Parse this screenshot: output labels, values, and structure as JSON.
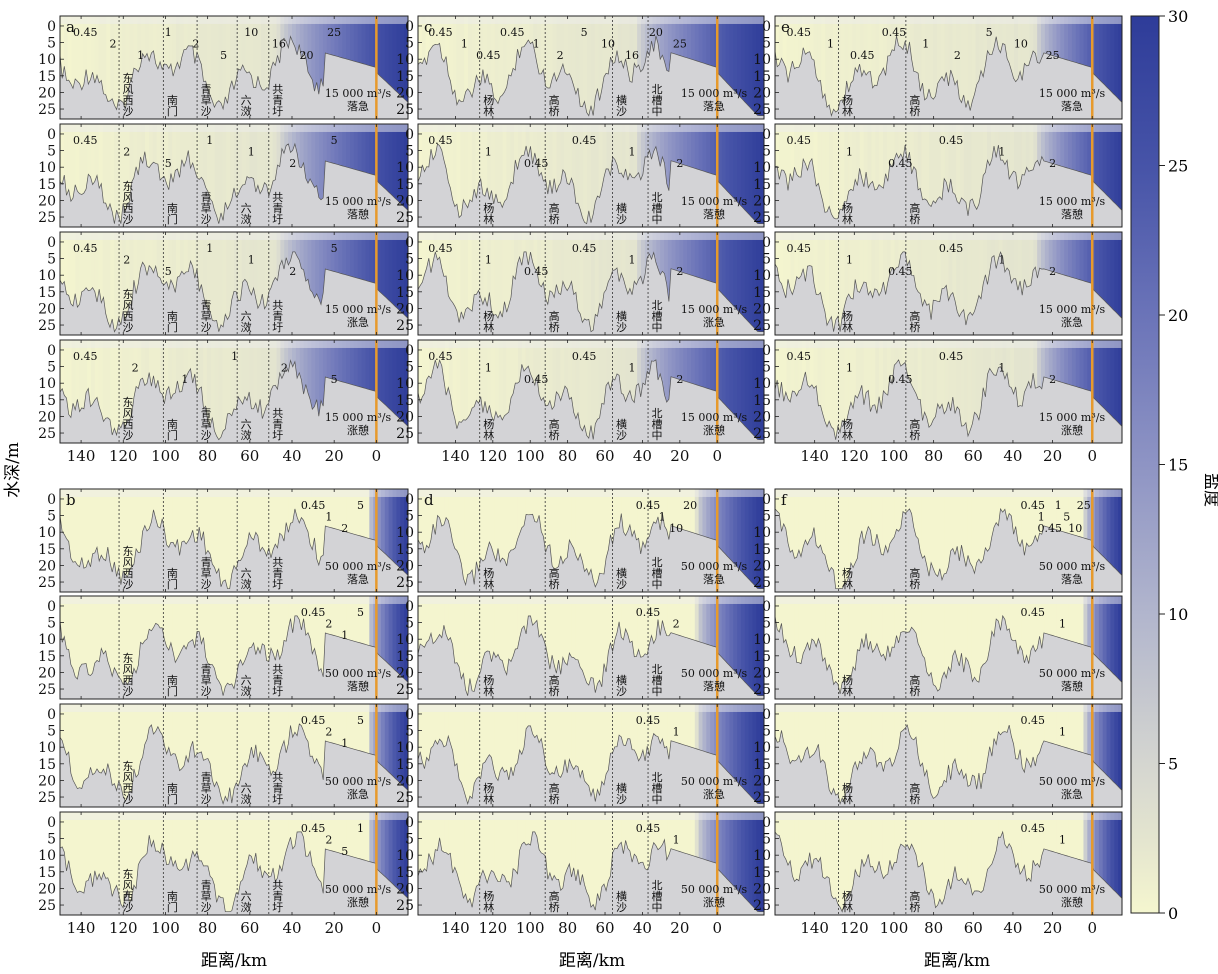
{
  "figure": {
    "ylabel": "水深/m",
    "xlabel": "距离/km",
    "colorbar": {
      "label": "盐度",
      "ticks": [
        0,
        5,
        10,
        15,
        20,
        25,
        30
      ],
      "colors": [
        "#f5f6cf",
        "#d6d6cf",
        "#c4c6d2",
        "#9ea3c8",
        "#7880bd",
        "#4f5aae",
        "#2e3c99"
      ]
    },
    "land_color": "#d3d3d6",
    "river_mouth_color": "#e79a2c"
  },
  "chart_data": [
    {
      "type": "heatmap",
      "panel": "a",
      "x_ticks": [
        140,
        120,
        100,
        80,
        60,
        40,
        20,
        0
      ],
      "xlim": [
        150,
        -15
      ],
      "y_ticks": [
        0,
        5,
        10,
        15,
        20,
        25
      ],
      "ylim": [
        28,
        -3
      ],
      "sections": [
        "东风西沙",
        "南门",
        "青草沙",
        "六滧",
        "共青圩"
      ],
      "section_km": [
        122,
        101,
        85,
        66,
        51
      ],
      "rows": [
        {
          "discharge": "15 000 m³/s",
          "tide": "落急",
          "contours": [
            "0.45",
            "2",
            "1",
            "1",
            "2",
            "5",
            "10",
            "16",
            "20",
            "25"
          ]
        },
        {
          "discharge": "15 000 m³/s",
          "tide": "落憩",
          "contours": [
            "0.45",
            "2",
            "5",
            "1",
            "1",
            "2",
            "5"
          ]
        },
        {
          "discharge": "15 000 m³/s",
          "tide": "涨急",
          "contours": [
            "0.45",
            "2",
            "5",
            "1",
            "1",
            "2",
            "5"
          ]
        },
        {
          "discharge": "15 000 m³/s",
          "tide": "涨憩",
          "contours": [
            "0.45",
            "2",
            "1",
            "1",
            "2",
            "5"
          ]
        }
      ]
    },
    {
      "type": "heatmap",
      "panel": "b",
      "x_ticks": [
        140,
        120,
        100,
        80,
        60,
        40,
        20,
        0
      ],
      "xlim": [
        150,
        -15
      ],
      "y_ticks": [
        0,
        5,
        10,
        15,
        20,
        25
      ],
      "ylim": [
        28,
        -3
      ],
      "sections": [
        "东风西沙",
        "南门",
        "青草沙",
        "六滧",
        "共青圩"
      ],
      "section_km": [
        122,
        101,
        85,
        66,
        51
      ],
      "rows": [
        {
          "discharge": "50 000 m³/s",
          "tide": "落急",
          "contours": [
            "0.45",
            "1",
            "2",
            "5"
          ]
        },
        {
          "discharge": "50 000 m³/s",
          "tide": "落憩",
          "contours": [
            "0.45",
            "2",
            "1",
            "5"
          ]
        },
        {
          "discharge": "50 000 m³/s",
          "tide": "涨急",
          "contours": [
            "0.45",
            "2",
            "1",
            "5"
          ]
        },
        {
          "discharge": "50 000 m³/s",
          "tide": "涨憩",
          "contours": [
            "0.45",
            "2",
            "5",
            "1"
          ]
        }
      ]
    },
    {
      "type": "heatmap",
      "panel": "c",
      "x_ticks": [
        140,
        120,
        100,
        80,
        60,
        40,
        20,
        0
      ],
      "xlim": [
        160,
        -25
      ],
      "y_ticks": [
        0,
        5,
        10,
        15,
        20,
        25
      ],
      "ylim": [
        28,
        -3
      ],
      "sections": [
        "杨林",
        "高桥",
        "横沙",
        "北槽中"
      ],
      "section_km": [
        127,
        92,
        56,
        37
      ],
      "rows": [
        {
          "discharge": "15 000 m³/s",
          "tide": "落急",
          "contours": [
            "0.45",
            "1",
            "0.45",
            "0.45",
            "1",
            "2",
            "5",
            "10",
            "16",
            "20",
            "25"
          ]
        },
        {
          "discharge": "15 000 m³/s",
          "tide": "落憩",
          "contours": [
            "0.45",
            "1",
            "0.45",
            "0.45",
            "1",
            "2"
          ]
        },
        {
          "discharge": "15 000 m³/s",
          "tide": "涨急",
          "contours": [
            "0.45",
            "1",
            "0.45",
            "0.45",
            "1",
            "2"
          ]
        },
        {
          "discharge": "15 000 m³/s",
          "tide": "涨憩",
          "contours": [
            "0.45",
            "1",
            "0.45",
            "0.45",
            "1",
            "2"
          ]
        }
      ]
    },
    {
      "type": "heatmap",
      "panel": "d",
      "x_ticks": [
        140,
        120,
        100,
        80,
        60,
        40,
        20,
        0
      ],
      "xlim": [
        160,
        -25
      ],
      "y_ticks": [
        0,
        5,
        10,
        15,
        20,
        25
      ],
      "ylim": [
        28,
        -3
      ],
      "sections": [
        "杨林",
        "高桥",
        "横沙",
        "北槽中"
      ],
      "section_km": [
        127,
        92,
        56,
        37
      ],
      "rows": [
        {
          "discharge": "50 000 m³/s",
          "tide": "落急",
          "contours": [
            "0.45",
            "1",
            "10",
            "20"
          ]
        },
        {
          "discharge": "50 000 m³/s",
          "tide": "落憩",
          "contours": [
            "0.45",
            "2"
          ]
        },
        {
          "discharge": "50 000 m³/s",
          "tide": "涨急",
          "contours": [
            "0.45",
            "1"
          ]
        },
        {
          "discharge": "50 000 m³/s",
          "tide": "涨憩",
          "contours": [
            "0.45",
            "1"
          ]
        }
      ]
    },
    {
      "type": "heatmap",
      "panel": "e",
      "x_ticks": [
        140,
        120,
        100,
        80,
        60,
        40,
        20,
        0
      ],
      "xlim": [
        160,
        -15
      ],
      "y_ticks": [
        0,
        5,
        10,
        15,
        20,
        25
      ],
      "ylim": [
        28,
        -3
      ],
      "sections": [
        "杨林",
        "高桥"
      ],
      "section_km": [
        128,
        94
      ],
      "rows": [
        {
          "discharge": "15 000 m³/s",
          "tide": "落急",
          "contours": [
            "0.45",
            "1",
            "0.45",
            "0.45",
            "1",
            "2",
            "5",
            "10",
            "25"
          ]
        },
        {
          "discharge": "15 000 m³/s",
          "tide": "落憩",
          "contours": [
            "0.45",
            "1",
            "0.45",
            "0.45",
            "1",
            "2"
          ]
        },
        {
          "discharge": "15 000 m³/s",
          "tide": "涨急",
          "contours": [
            "0.45",
            "1",
            "0.45",
            "0.45",
            "1",
            "2"
          ]
        },
        {
          "discharge": "15 000 m³/s",
          "tide": "涨憩",
          "contours": [
            "0.45",
            "1",
            "0.45",
            "0.45",
            "1",
            "2"
          ]
        }
      ]
    },
    {
      "type": "heatmap",
      "panel": "f",
      "x_ticks": [
        140,
        120,
        100,
        80,
        60,
        40,
        20,
        0
      ],
      "xlim": [
        160,
        -15
      ],
      "y_ticks": [
        0,
        5,
        10,
        15,
        20,
        25
      ],
      "ylim": [
        28,
        -3
      ],
      "sections": [
        "杨林",
        "高桥"
      ],
      "section_km": [
        128,
        94
      ],
      "rows": [
        {
          "discharge": "50 000 m³/s",
          "tide": "落急",
          "contours": [
            "0.45",
            "1",
            "0.45",
            "1",
            "5",
            "10",
            "25"
          ]
        },
        {
          "discharge": "50 000 m³/s",
          "tide": "落憩",
          "contours": [
            "0.45",
            "1"
          ]
        },
        {
          "discharge": "50 000 m³/s",
          "tide": "涨急",
          "contours": [
            "0.45",
            "1"
          ]
        },
        {
          "discharge": "50 000 m³/s",
          "tide": "涨憩",
          "contours": [
            "0.45",
            "1"
          ]
        }
      ]
    }
  ]
}
